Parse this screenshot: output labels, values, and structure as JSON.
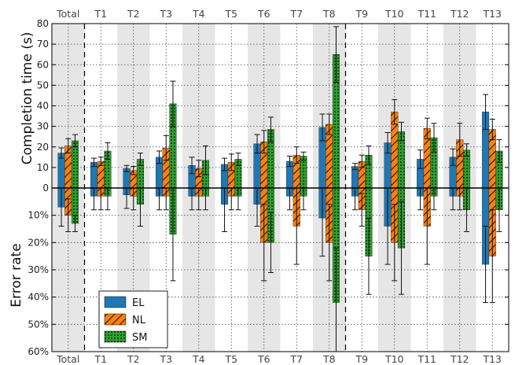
{
  "chart_data": {
    "type": "bar",
    "categories": [
      "Total",
      "T1",
      "T2",
      "T3",
      "T4",
      "T5",
      "T6",
      "T7",
      "T8",
      "T9",
      "T10",
      "T11",
      "T12",
      "T13"
    ],
    "top_axis": {
      "ylabel": "Completion time (s)",
      "ylim": [
        0,
        80
      ],
      "ticks": [
        0,
        10,
        20,
        30,
        40,
        50,
        60,
        70,
        80
      ],
      "tick_labels": [
        "0",
        "10",
        "20",
        "30",
        "40",
        "50",
        "60",
        "70",
        "80"
      ]
    },
    "bottom_axis": {
      "ylabel": "Error rate",
      "ylim": [
        0,
        60
      ],
      "ticks": [
        10,
        20,
        30,
        40,
        50,
        60
      ],
      "tick_labels": [
        "10%",
        "20%",
        "30%",
        "40%",
        "50%",
        "60%"
      ]
    },
    "series": [
      {
        "name": "EL",
        "color": "#1f77b4",
        "time": [
          17,
          12.5,
          9.5,
          15,
          11,
          11.5,
          21.5,
          13,
          29.5,
          10.5,
          22,
          14,
          15,
          37
        ],
        "time_err": [
          2.5,
          2,
          1.5,
          3,
          4,
          3,
          4.5,
          2.5,
          6.5,
          1.5,
          5,
          4.5,
          4,
          8.5
        ],
        "error": [
          7,
          3,
          2.5,
          3,
          3,
          6,
          6,
          3,
          11,
          3,
          14,
          3,
          3,
          28
        ],
        "error_err": [
          7,
          5,
          5,
          5,
          5,
          10,
          8,
          5,
          14,
          5,
          14,
          5,
          5,
          14
        ]
      },
      {
        "name": "NL",
        "color": "#ff7f0e",
        "time": [
          20.5,
          13,
          8.5,
          19.5,
          9.5,
          12.5,
          22.5,
          16,
          31,
          13,
          37,
          29,
          23.5,
          28.5
        ],
        "time_err": [
          3.5,
          2,
          2,
          6,
          4,
          4,
          5.5,
          4,
          5,
          3,
          6,
          5,
          8,
          5
        ],
        "error": [
          10,
          3,
          3,
          3,
          3,
          3,
          20,
          14,
          20,
          8,
          20,
          14,
          3,
          25
        ],
        "error_err": [
          6,
          5,
          5,
          5,
          5,
          5,
          14,
          14,
          14,
          6,
          14,
          14,
          5,
          17
        ]
      },
      {
        "name": "SM",
        "color": "#2ca02c",
        "time": [
          23,
          18,
          14,
          41,
          13.5,
          14,
          28.5,
          15.5,
          65,
          16,
          27.5,
          24.5,
          18.5,
          18
        ],
        "time_err": [
          3,
          4,
          3,
          11,
          7,
          3,
          6,
          2,
          13.5,
          4.5,
          4.5,
          7,
          3,
          5.5
        ],
        "error": [
          13,
          3,
          6,
          17,
          3,
          3,
          20,
          3,
          42,
          25,
          22,
          3,
          8,
          8
        ],
        "error_err": [
          3,
          5,
          8,
          17,
          5,
          5,
          11,
          5,
          20,
          14,
          17,
          5,
          8,
          8
        ]
      }
    ],
    "legend_position": "bottom-left",
    "grid": true,
    "separators_after": [
      "Total",
      "T8"
    ]
  }
}
